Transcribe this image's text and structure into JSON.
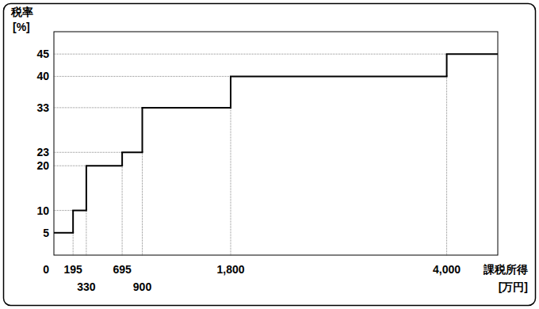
{
  "chart_data": {
    "type": "line",
    "line_style": "step",
    "color": "#000000",
    "ylabel": "税率\n[%]",
    "xlabel": "課税所得\n[万円]",
    "x": [
      0,
      195,
      330,
      695,
      900,
      1800,
      4000
    ],
    "values": [
      5,
      10,
      20,
      23,
      33,
      40,
      45
    ],
    "xlim": [
      0,
      4520
    ],
    "ylim": [
      0,
      50
    ],
    "xticks": [
      0,
      195,
      330,
      695,
      900,
      {
        "value": 1800,
        "label": "1,800"
      },
      {
        "value": 4000,
        "label": "4,000"
      }
    ],
    "yticks": [
      5,
      10,
      20,
      23,
      33,
      40,
      45
    ],
    "grid": true
  }
}
